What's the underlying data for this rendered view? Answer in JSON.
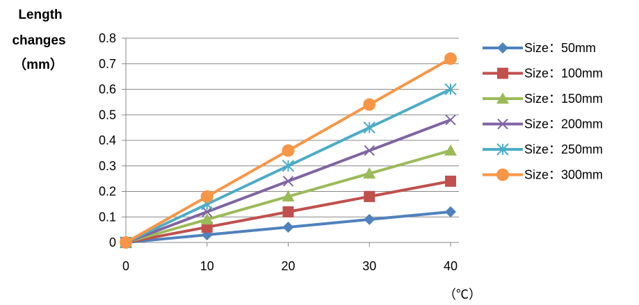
{
  "chart_data": {
    "type": "line",
    "ylabel_lines": [
      "Length",
      "changes",
      "（mm）"
    ],
    "xlabel": "（℃）",
    "x": [
      0,
      10,
      20,
      30,
      40
    ],
    "xlim": [
      0,
      40
    ],
    "ylim": [
      0,
      0.8
    ],
    "y_ticks": [
      "0",
      "0.1",
      "0.2",
      "0.3",
      "0.4",
      "0.5",
      "0.6",
      "0.7",
      "0.8"
    ],
    "x_ticks": [
      "0",
      "10",
      "20",
      "30",
      "40"
    ],
    "grid": "horizontal",
    "legend_position": "right",
    "series": [
      {
        "name": "Size：50mm",
        "color": "#4F81BD",
        "marker": "diamond",
        "values": [
          0,
          0.03,
          0.06,
          0.09,
          0.12
        ]
      },
      {
        "name": "Size：100mm",
        "color": "#C0504D",
        "marker": "square",
        "values": [
          0,
          0.06,
          0.12,
          0.18,
          0.24
        ]
      },
      {
        "name": "Size：150mm",
        "color": "#9BBB59",
        "marker": "triangle",
        "values": [
          0,
          0.09,
          0.18,
          0.27,
          0.36
        ]
      },
      {
        "name": "Size：200mm",
        "color": "#8064A2",
        "marker": "x",
        "values": [
          0,
          0.12,
          0.24,
          0.36,
          0.48
        ]
      },
      {
        "name": "Size：250mm",
        "color": "#4BACC6",
        "marker": "star",
        "values": [
          0,
          0.15,
          0.3,
          0.45,
          0.6
        ]
      },
      {
        "name": "Size：300mm",
        "color": "#F79646",
        "marker": "circle",
        "values": [
          0,
          0.18,
          0.36,
          0.54,
          0.72
        ]
      }
    ]
  }
}
